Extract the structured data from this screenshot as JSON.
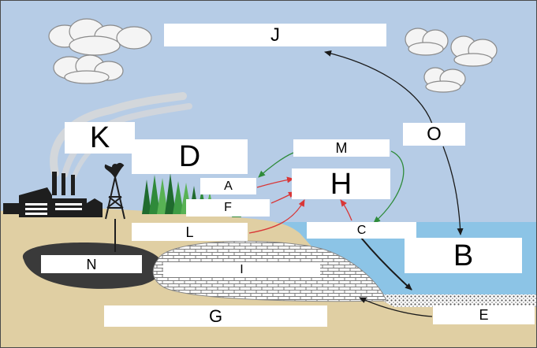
{
  "labels": {
    "J": "J",
    "O": "O",
    "K": "K",
    "D": "D",
    "M": "M",
    "H": "H",
    "A": "A",
    "F": "F",
    "L": "L",
    "C": "C",
    "B": "B",
    "N": "N",
    "I": "I",
    "G": "G",
    "E": "E"
  },
  "colors": {
    "sky": "#b6cce6",
    "ground": "#e0cfa3",
    "ocean": "#8cc4e6",
    "oil": "#3a3a3a",
    "arrow_black": "#1a1a1a",
    "arrow_green": "#2e8b3a",
    "arrow_red": "#d93636",
    "tree_dark": "#1f6b2e",
    "tree_light": "#58b254"
  },
  "icons": [
    "cloud-icon",
    "factory-icon",
    "oil-derrick-icon",
    "smoke-plume-icon",
    "tree-icon"
  ]
}
